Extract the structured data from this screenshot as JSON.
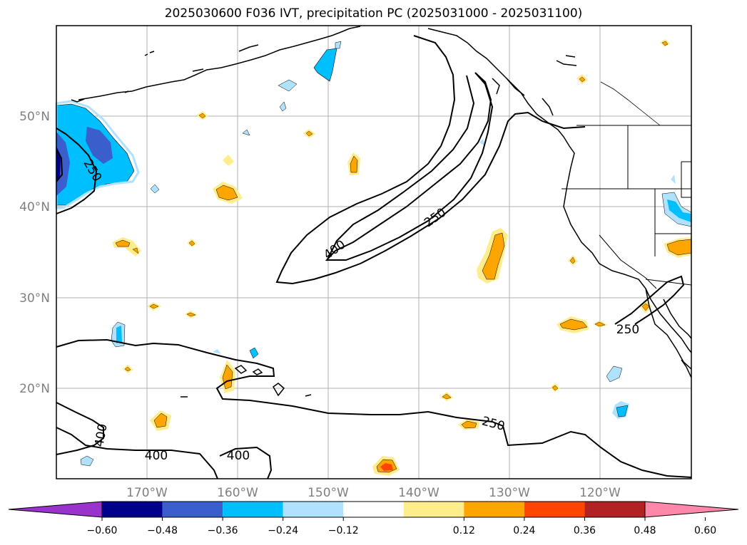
{
  "title": "2025030600 F036 IVT, precipitation PC (2025031000 - 2025031100)",
  "latitude_labels": [
    "50°N",
    "40°N",
    "30°N",
    "20°N"
  ],
  "longitude_labels": [
    "170°W",
    "160°W",
    "150°W",
    "140°W",
    "130°W",
    "120°W"
  ],
  "ivt_contour_labels": [
    "250",
    "400",
    "250",
    "250",
    "400",
    "400",
    "400",
    "250"
  ],
  "colorbar": {
    "tick_labels": [
      "−0.60",
      "−0.48",
      "−0.36",
      "−0.24",
      "−0.12",
      "0.12",
      "0.24",
      "0.36",
      "0.48",
      "0.60"
    ],
    "colors": [
      "#9933cc",
      "#00008b",
      "#3a5fcd",
      "#00bfff",
      "#b0e2ff",
      "#ffffff",
      "#ffec8b",
      "#ffa500",
      "#ff4500",
      "#b22222",
      "#ff88aa"
    ]
  }
}
